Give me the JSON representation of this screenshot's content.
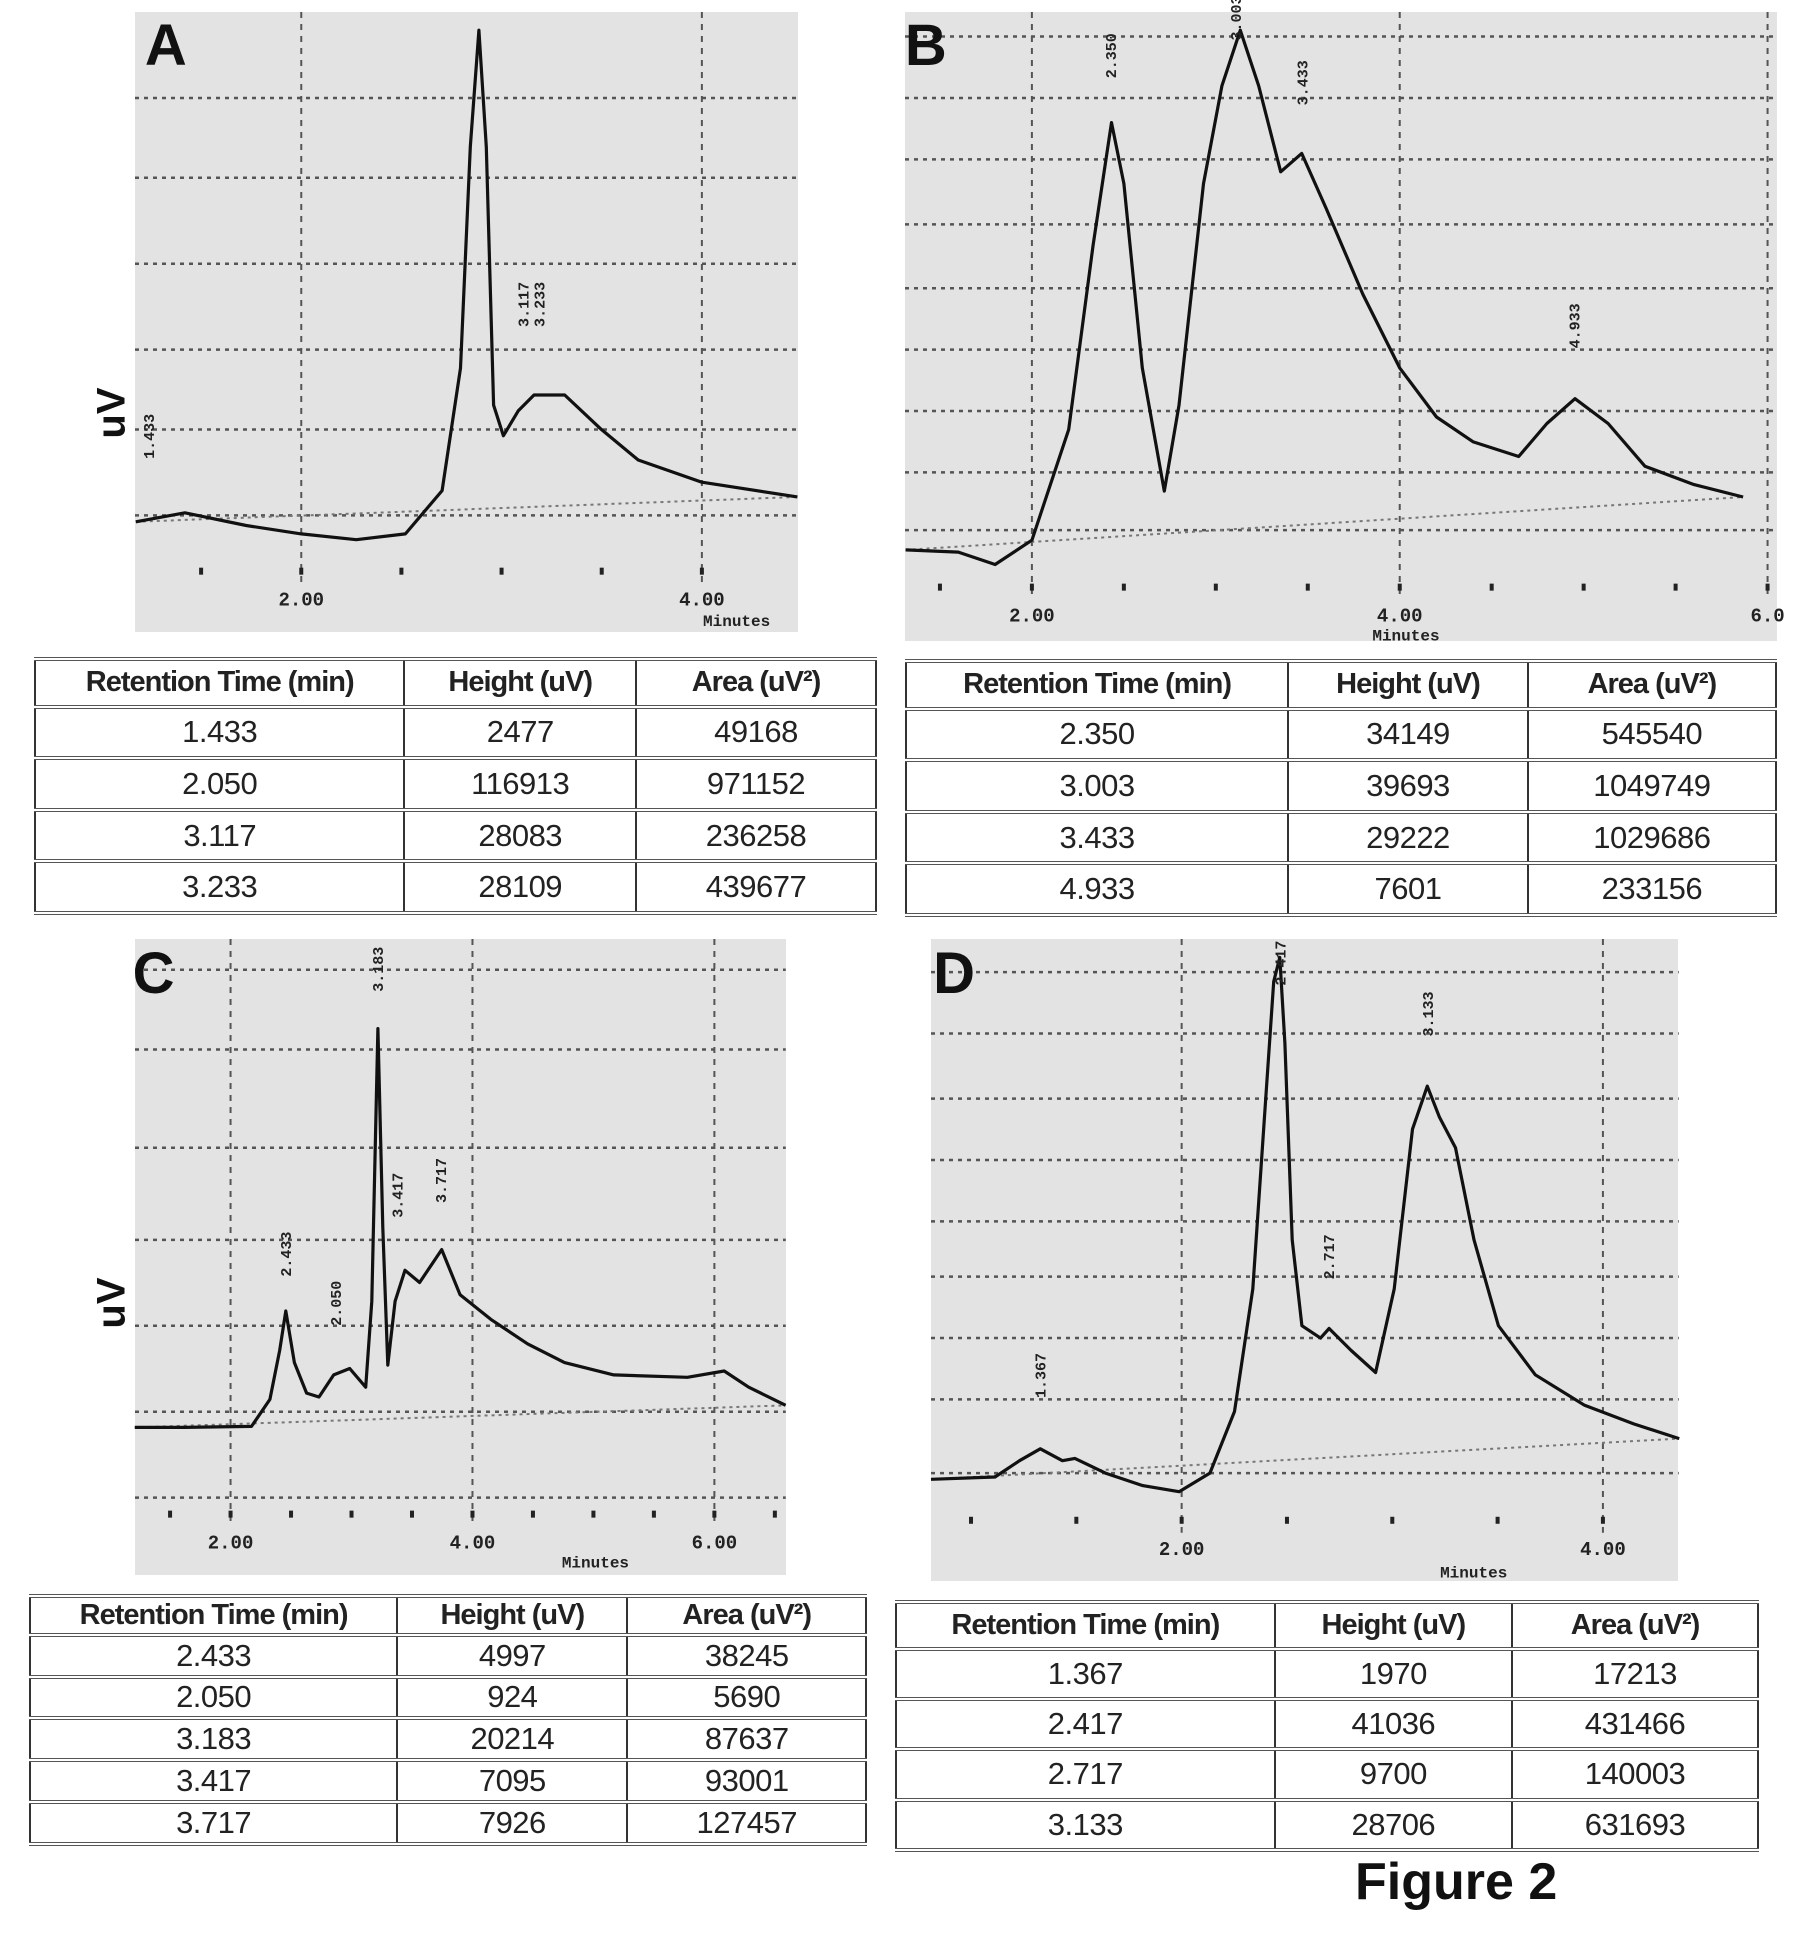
{
  "figure_title": "Figure 2",
  "chart_data": [
    {
      "panel": "A",
      "type": "line",
      "xlabel": "Minutes",
      "ylabel": "uV",
      "xlim": [
        1.17,
        4.48
      ],
      "xticks": [
        "2.00",
        "4.00"
      ],
      "xtick_values": [
        2,
        4
      ],
      "grid": true,
      "trace": [
        [
          1.174,
          0.081
        ],
        [
          1.419,
          0.098
        ],
        [
          1.725,
          0.074
        ],
        [
          2.0,
          0.058
        ],
        [
          2.275,
          0.047
        ],
        [
          2.52,
          0.058
        ],
        [
          2.703,
          0.14
        ],
        [
          2.795,
          0.372
        ],
        [
          2.844,
          0.791
        ],
        [
          2.887,
          1.012
        ],
        [
          2.924,
          0.791
        ],
        [
          2.96,
          0.302
        ],
        [
          3.009,
          0.244
        ],
        [
          3.083,
          0.291
        ],
        [
          3.162,
          0.321
        ],
        [
          3.315,
          0.321
        ],
        [
          3.498,
          0.256
        ],
        [
          3.682,
          0.198
        ],
        [
          4.0,
          0.156
        ],
        [
          4.477,
          0.128
        ]
      ],
      "peak_labels": [
        {
          "text": "1.433",
          "x": 1.24,
          "y": 0.2
        },
        {
          "text": "3.117",
          "x": 3.11,
          "y": 0.45
        },
        {
          "text": "3.233",
          "x": 3.19,
          "y": 0.45
        }
      ],
      "table": {
        "columns": [
          "Retention Time (min)",
          "Height (uV)",
          "Area (uV²)"
        ],
        "rows": [
          [
            "1.433",
            "2477",
            "49168"
          ],
          [
            "2.050",
            "116913",
            "971152"
          ],
          [
            "3.117",
            "28083",
            "236258"
          ],
          [
            "3.233",
            "28109",
            "439677"
          ]
        ]
      }
    },
    {
      "panel": "B",
      "type": "line",
      "xlabel": "Minutes",
      "ylabel": "",
      "xlim": [
        1.31,
        6.05
      ],
      "xticks": [
        "2.00",
        "4.00",
        "6.0"
      ],
      "xtick_values": [
        2,
        4,
        6
      ],
      "grid": true,
      "trace": [
        [
          1.313,
          0.027
        ],
        [
          1.6,
          0.023
        ],
        [
          1.8,
          0.0
        ],
        [
          2.0,
          0.045
        ],
        [
          2.2,
          0.25
        ],
        [
          2.333,
          0.591
        ],
        [
          2.433,
          0.818
        ],
        [
          2.5,
          0.705
        ],
        [
          2.6,
          0.364
        ],
        [
          2.72,
          0.136
        ],
        [
          2.8,
          0.295
        ],
        [
          2.933,
          0.705
        ],
        [
          3.033,
          0.886
        ],
        [
          3.133,
          0.989
        ],
        [
          3.233,
          0.886
        ],
        [
          3.353,
          0.727
        ],
        [
          3.467,
          0.761
        ],
        [
          3.6,
          0.659
        ],
        [
          3.8,
          0.5
        ],
        [
          4.0,
          0.364
        ],
        [
          4.2,
          0.273
        ],
        [
          4.4,
          0.227
        ],
        [
          4.647,
          0.2
        ],
        [
          4.8,
          0.261
        ],
        [
          4.953,
          0.307
        ],
        [
          5.133,
          0.261
        ],
        [
          5.333,
          0.182
        ],
        [
          5.6,
          0.148
        ],
        [
          5.867,
          0.125
        ]
      ],
      "peak_labels": [
        {
          "text": "2.350",
          "x": 2.43,
          "y": 0.9
        },
        {
          "text": "3.003",
          "x": 3.11,
          "y": 0.97
        },
        {
          "text": "3.433",
          "x": 3.47,
          "y": 0.85
        },
        {
          "text": "4.933",
          "x": 4.95,
          "y": 0.4
        }
      ],
      "table": {
        "columns": [
          "Retention Time (min)",
          "Height (uV)",
          "Area (uV²)"
        ],
        "rows": [
          [
            "2.350",
            "34149",
            "545540"
          ],
          [
            "3.003",
            "39693",
            "1049749"
          ],
          [
            "3.433",
            "29222",
            "1029686"
          ],
          [
            "4.933",
            "7601",
            "233156"
          ]
        ]
      }
    },
    {
      "panel": "C",
      "type": "line",
      "xlabel": "Minutes",
      "ylabel": "uV",
      "xlim": [
        1.21,
        6.59
      ],
      "xticks": [
        "2.00",
        "4.00",
        "6.00"
      ],
      "xtick_values": [
        2,
        4,
        6
      ],
      "grid": true,
      "trace": [
        [
          1.208,
          0.093
        ],
        [
          1.614,
          0.093
        ],
        [
          2.173,
          0.095
        ],
        [
          2.325,
          0.15
        ],
        [
          2.406,
          0.25
        ],
        [
          2.457,
          0.33
        ],
        [
          2.528,
          0.225
        ],
        [
          2.629,
          0.163
        ],
        [
          2.731,
          0.155
        ],
        [
          2.853,
          0.2
        ],
        [
          2.985,
          0.213
        ],
        [
          3.117,
          0.175
        ],
        [
          3.168,
          0.35
        ],
        [
          3.218,
          0.905
        ],
        [
          3.259,
          0.5
        ],
        [
          3.3,
          0.22
        ],
        [
          3.36,
          0.35
        ],
        [
          3.442,
          0.413
        ],
        [
          3.563,
          0.388
        ],
        [
          3.746,
          0.455
        ],
        [
          3.898,
          0.363
        ],
        [
          4.152,
          0.313
        ],
        [
          4.457,
          0.263
        ],
        [
          4.761,
          0.225
        ],
        [
          5.168,
          0.2
        ],
        [
          5.777,
          0.195
        ],
        [
          6.081,
          0.208
        ],
        [
          6.284,
          0.175
        ],
        [
          6.589,
          0.138
        ]
      ],
      "peak_labels": [
        {
          "text": "2.433",
          "x": 2.46,
          "y": 0.4
        },
        {
          "text": "2.050",
          "x": 2.87,
          "y": 0.3
        },
        {
          "text": "3.183",
          "x": 3.22,
          "y": 0.98
        },
        {
          "text": "3.417",
          "x": 3.38,
          "y": 0.52
        },
        {
          "text": "3.717",
          "x": 3.74,
          "y": 0.55
        }
      ],
      "table": {
        "columns": [
          "Retention Time (min)",
          "Height (uV)",
          "Area (uV²)"
        ],
        "rows": [
          [
            "2.433",
            "4997",
            "38245"
          ],
          [
            "2.050",
            "924",
            "5690"
          ],
          [
            "3.183",
            "20214",
            "87637"
          ],
          [
            "3.417",
            "7095",
            "93001"
          ],
          [
            "3.717",
            "7926",
            "127457"
          ]
        ]
      }
    },
    {
      "panel": "D",
      "type": "line",
      "xlabel": "Minutes",
      "ylabel": "",
      "xlim": [
        0.81,
        4.36
      ],
      "xticks": [
        "2.00",
        "4.00"
      ],
      "xtick_values": [
        2,
        4
      ],
      "grid": true,
      "trace": [
        [
          0.81,
          0.076
        ],
        [
          1.114,
          0.08
        ],
        [
          1.23,
          0.109
        ],
        [
          1.329,
          0.13
        ],
        [
          1.434,
          0.109
        ],
        [
          1.493,
          0.113
        ],
        [
          1.638,
          0.087
        ],
        [
          1.813,
          0.065
        ],
        [
          1.988,
          0.054
        ],
        [
          2.134,
          0.087
        ],
        [
          2.251,
          0.196
        ],
        [
          2.338,
          0.413
        ],
        [
          2.397,
          0.739
        ],
        [
          2.437,
          0.957
        ],
        [
          2.466,
          1.0
        ],
        [
          2.49,
          0.848
        ],
        [
          2.525,
          0.5
        ],
        [
          2.571,
          0.348
        ],
        [
          2.659,
          0.326
        ],
        [
          2.7,
          0.343
        ],
        [
          2.805,
          0.304
        ],
        [
          2.921,
          0.265
        ],
        [
          3.009,
          0.413
        ],
        [
          3.096,
          0.696
        ],
        [
          3.166,
          0.772
        ],
        [
          3.224,
          0.717
        ],
        [
          3.3,
          0.663
        ],
        [
          3.388,
          0.5
        ],
        [
          3.504,
          0.348
        ],
        [
          3.679,
          0.261
        ],
        [
          3.913,
          0.207
        ],
        [
          4.146,
          0.174
        ],
        [
          4.362,
          0.148
        ]
      ],
      "peak_labels": [
        {
          "text": "1.367",
          "x": 1.33,
          "y": 0.22
        },
        {
          "text": "2.417",
          "x": 2.47,
          "y": 0.95
        },
        {
          "text": "2.717",
          "x": 2.7,
          "y": 0.43
        },
        {
          "text": "3.133",
          "x": 3.17,
          "y": 0.86
        }
      ],
      "table": {
        "columns": [
          "Retention Time (min)",
          "Height (uV)",
          "Area (uV²)"
        ],
        "rows": [
          [
            "1.367",
            "1970",
            "17213"
          ],
          [
            "2.417",
            "41036",
            "431466"
          ],
          [
            "2.717",
            "9700",
            "140003"
          ],
          [
            "3.133",
            "28706",
            "631693"
          ]
        ]
      }
    }
  ]
}
